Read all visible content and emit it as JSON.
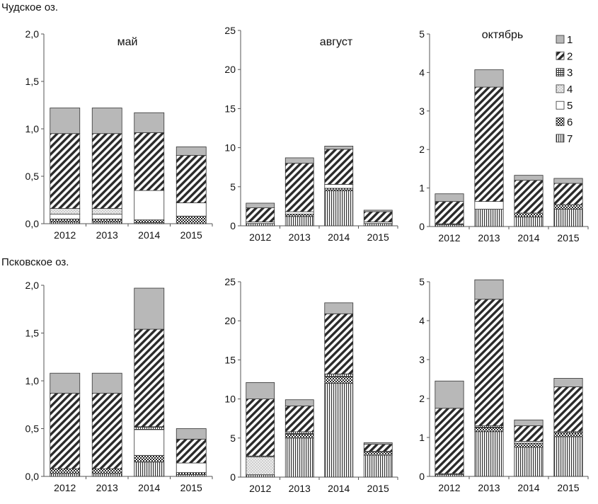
{
  "lakes": [
    {
      "title": "Чудское оз."
    },
    {
      "title": "Псковское оз."
    }
  ],
  "legend": {
    "entries": [
      {
        "label": "1",
        "pattern": "solid-gray"
      },
      {
        "label": "2",
        "pattern": "diagonal-dense"
      },
      {
        "label": "3",
        "pattern": "grid"
      },
      {
        "label": "4",
        "pattern": "dotted-light"
      },
      {
        "label": "5",
        "pattern": "white"
      },
      {
        "label": "6",
        "pattern": "checker"
      },
      {
        "label": "7",
        "pattern": "vertical-lines"
      }
    ]
  },
  "colors": {
    "bar_edge": "#333333",
    "solid_gray": "#b8b8b8",
    "light_gray": "#d6d6d6",
    "axis": "#555555"
  },
  "chart_data": [
    {
      "type": "bar",
      "stacked": true,
      "lake": "Чудское оз.",
      "title": "май",
      "categories": [
        "2012",
        "2013",
        "2014",
        "2015"
      ],
      "ylim": [
        0,
        2
      ],
      "yticks": [
        "0,0",
        "0,5",
        "1,0",
        "1,5",
        "2,0"
      ],
      "series": [
        {
          "name": "7",
          "values": [
            0.02,
            0.02,
            0.01,
            0.0
          ]
        },
        {
          "name": "6",
          "values": [
            0.03,
            0.03,
            0.03,
            0.08
          ]
        },
        {
          "name": "5",
          "values": [
            0.05,
            0.05,
            0.31,
            0.14
          ]
        },
        {
          "name": "4",
          "values": [
            0.06,
            0.06,
            0.0,
            0.0
          ]
        },
        {
          "name": "3",
          "values": [
            0.0,
            0.0,
            0.0,
            0.0
          ]
        },
        {
          "name": "2",
          "values": [
            0.79,
            0.79,
            0.61,
            0.5
          ]
        },
        {
          "name": "1",
          "values": [
            0.27,
            0.27,
            0.21,
            0.09
          ]
        }
      ]
    },
    {
      "type": "bar",
      "stacked": true,
      "lake": "Чудское оз.",
      "title": "август",
      "categories": [
        "2012",
        "2013",
        "2014",
        "2015"
      ],
      "ylim": [
        0,
        25
      ],
      "yticks": [
        "0",
        "5",
        "10",
        "15",
        "20",
        "25"
      ],
      "series": [
        {
          "name": "7",
          "values": [
            0.3,
            1.2,
            4.5,
            0.3
          ]
        },
        {
          "name": "6",
          "values": [
            0.0,
            0.3,
            0.3,
            0.0
          ]
        },
        {
          "name": "5",
          "values": [
            0.2,
            0.3,
            0.5,
            0.2
          ]
        },
        {
          "name": "4",
          "values": [
            0.0,
            0.0,
            0.0,
            0.0
          ]
        },
        {
          "name": "3",
          "values": [
            0.0,
            0.0,
            0.0,
            0.0
          ]
        },
        {
          "name": "2",
          "values": [
            1.8,
            6.2,
            4.5,
            1.3
          ]
        },
        {
          "name": "1",
          "values": [
            0.6,
            0.7,
            0.4,
            0.2
          ]
        }
      ]
    },
    {
      "type": "bar",
      "stacked": true,
      "lake": "Чудское оз.",
      "title": "октябрь",
      "categories": [
        "2012",
        "2013",
        "2014",
        "2015"
      ],
      "ylim": [
        0,
        5
      ],
      "yticks": [
        "0",
        "1",
        "2",
        "3",
        "4",
        "5"
      ],
      "series": [
        {
          "name": "7",
          "values": [
            0.05,
            0.45,
            0.25,
            0.45
          ]
        },
        {
          "name": "6",
          "values": [
            0.02,
            0.0,
            0.1,
            0.12
          ]
        },
        {
          "name": "5",
          "values": [
            0.0,
            0.2,
            0.0,
            0.0
          ]
        },
        {
          "name": "4",
          "values": [
            0.0,
            0.0,
            0.0,
            0.0
          ]
        },
        {
          "name": "3",
          "values": [
            0.0,
            0.0,
            0.0,
            0.0
          ]
        },
        {
          "name": "2",
          "values": [
            0.58,
            2.97,
            0.85,
            0.55
          ]
        },
        {
          "name": "1",
          "values": [
            0.2,
            0.45,
            0.13,
            0.13
          ]
        }
      ]
    },
    {
      "type": "bar",
      "stacked": true,
      "lake": "Псковское оз.",
      "title": "",
      "categories": [
        "2012",
        "2013",
        "2014",
        "2015"
      ],
      "ylim": [
        0,
        2
      ],
      "yticks": [
        "0,0",
        "0,5",
        "1,0",
        "1,5",
        "2,0"
      ],
      "series": [
        {
          "name": "7",
          "values": [
            0.03,
            0.03,
            0.15,
            0.02
          ]
        },
        {
          "name": "6",
          "values": [
            0.05,
            0.05,
            0.07,
            0.02
          ]
        },
        {
          "name": "5",
          "values": [
            0.0,
            0.0,
            0.27,
            0.1
          ]
        },
        {
          "name": "4",
          "values": [
            0.0,
            0.0,
            0.0,
            0.0
          ]
        },
        {
          "name": "3",
          "values": [
            0.0,
            0.0,
            0.03,
            0.0
          ]
        },
        {
          "name": "2",
          "values": [
            0.79,
            0.79,
            1.02,
            0.25
          ]
        },
        {
          "name": "1",
          "values": [
            0.21,
            0.21,
            0.43,
            0.11
          ]
        }
      ]
    },
    {
      "type": "bar",
      "stacked": true,
      "lake": "Псковское оз.",
      "title": "",
      "categories": [
        "2012",
        "2013",
        "2014",
        "2015"
      ],
      "ylim": [
        0,
        25
      ],
      "yticks": [
        "0",
        "5",
        "10",
        "15",
        "20",
        "25"
      ],
      "series": [
        {
          "name": "7",
          "values": [
            0.3,
            5.0,
            12.0,
            2.8
          ]
        },
        {
          "name": "6",
          "values": [
            0.0,
            0.5,
            0.8,
            0.4
          ]
        },
        {
          "name": "5",
          "values": [
            0.0,
            0.0,
            0.0,
            0.0
          ]
        },
        {
          "name": "4",
          "values": [
            2.3,
            0.0,
            0.0,
            0.0
          ]
        },
        {
          "name": "3",
          "values": [
            0.1,
            0.3,
            0.4,
            0.1
          ]
        },
        {
          "name": "2",
          "values": [
            7.3,
            3.3,
            7.7,
            0.9
          ]
        },
        {
          "name": "1",
          "values": [
            2.1,
            0.8,
            1.4,
            0.2
          ]
        }
      ]
    },
    {
      "type": "bar",
      "stacked": true,
      "lake": "Псковское оз.",
      "title": "",
      "categories": [
        "2012",
        "2013",
        "2014",
        "2015"
      ],
      "ylim": [
        0,
        5
      ],
      "yticks": [
        "0",
        "1",
        "2",
        "3",
        "4",
        "5"
      ],
      "series": [
        {
          "name": "7",
          "values": [
            0.05,
            1.15,
            0.75,
            1.02
          ]
        },
        {
          "name": "6",
          "values": [
            0.02,
            0.1,
            0.1,
            0.1
          ]
        },
        {
          "name": "5",
          "values": [
            0.0,
            0.0,
            0.0,
            0.0
          ]
        },
        {
          "name": "4",
          "values": [
            0.0,
            0.0,
            0.05,
            0.0
          ]
        },
        {
          "name": "3",
          "values": [
            0.0,
            0.05,
            0.0,
            0.03
          ]
        },
        {
          "name": "2",
          "values": [
            1.68,
            3.25,
            0.4,
            1.15
          ]
        },
        {
          "name": "1",
          "values": [
            0.7,
            0.5,
            0.15,
            0.22
          ]
        }
      ]
    }
  ]
}
